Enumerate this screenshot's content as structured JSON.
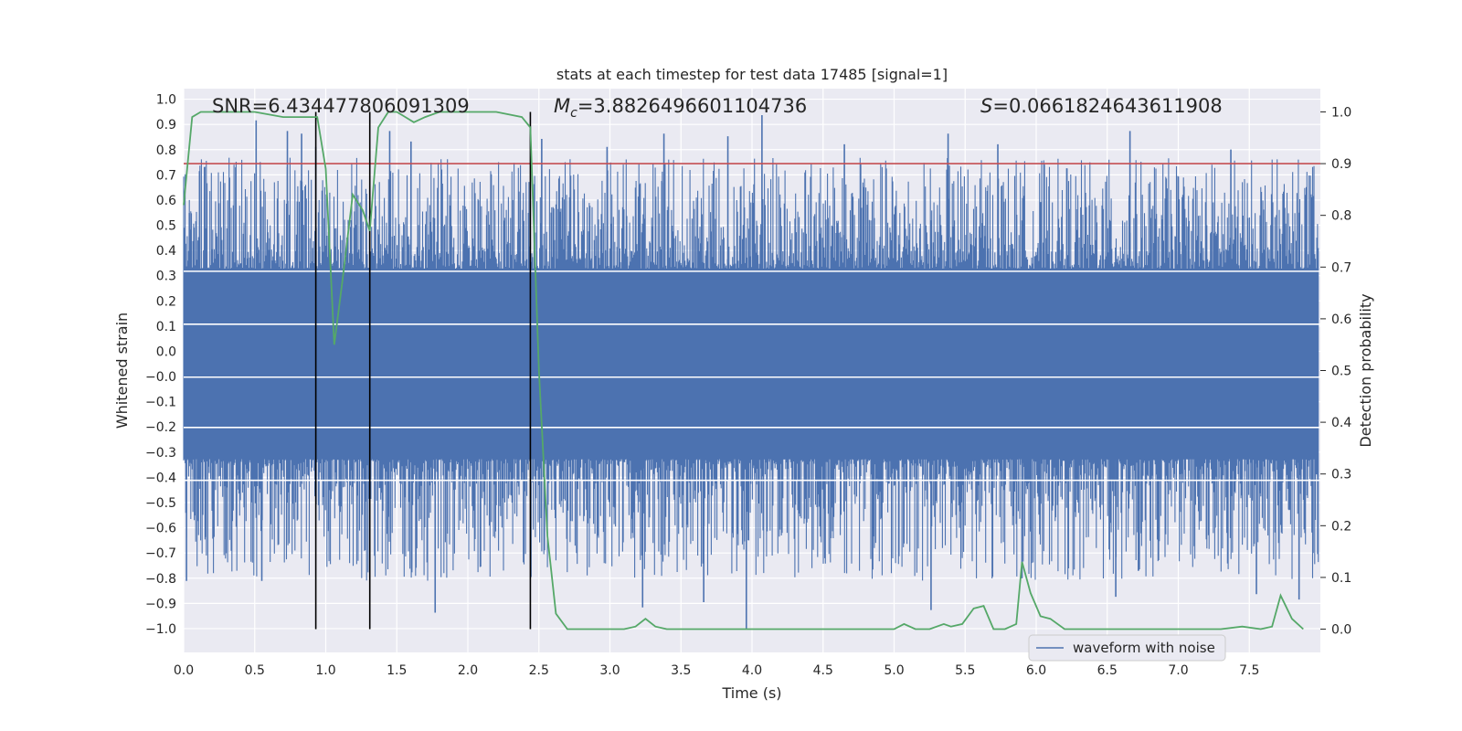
{
  "chart_data": {
    "type": "line",
    "title": "stats at each timestep for test data 17485 [signal=1]",
    "xlabel": "Time (s)",
    "ylabel": "Whitened strain",
    "y2label": "Detection probability",
    "xlim": [
      0.0,
      8.0
    ],
    "ylim": [
      -1.09,
      1.04
    ],
    "y2lim": [
      -0.045,
      1.045
    ],
    "xticks": [
      "0.0",
      "0.5",
      "1.0",
      "1.5",
      "2.0",
      "2.5",
      "3.0",
      "3.5",
      "4.0",
      "4.5",
      "5.0",
      "5.5",
      "6.0",
      "6.5",
      "7.0",
      "7.5"
    ],
    "yticks": [
      "1.0",
      "0.9",
      "0.8",
      "0.7",
      "0.6",
      "0.5",
      "0.4",
      "0.3",
      "0.2",
      "0.1",
      "0.0",
      "-0.0",
      "-0.1",
      "-0.2",
      "-0.3",
      "-0.4",
      "-0.5",
      "-0.6",
      "-0.7",
      "-0.8",
      "-0.9",
      "-1.0"
    ],
    "y2ticks": [
      "1.0",
      "0.9",
      "0.8",
      "0.7",
      "0.6",
      "0.5",
      "0.4",
      "0.3",
      "0.2",
      "0.1",
      "0.0"
    ],
    "annotations": {
      "snr": "SNR=6.434477806091309",
      "mc_symbol": "M",
      "mc_sub": "c",
      "mc_value": "=3.8826496601104736",
      "s_symbol": "S",
      "s_value": "=0.0661824643611908"
    },
    "threshold": 0.9,
    "vertical_lines_x": [
      0.93,
      1.31,
      2.44
    ],
    "legend": {
      "label": "waveform with noise",
      "placement": "lower-right"
    },
    "series": [
      {
        "name": "waveform with noise",
        "color": "#4c72b0",
        "envelope": {
          "core_abs": 0.36,
          "max": 0.94,
          "min": -1.0
        },
        "notable_peaks": [
          {
            "x": 0.04,
            "y": 0.57
          },
          {
            "x": 0.51,
            "y": 0.92
          },
          {
            "x": 0.73,
            "y": 0.88
          },
          {
            "x": 0.83,
            "y": 0.87
          },
          {
            "x": 0.93,
            "y": 0.82
          },
          {
            "x": 1.45,
            "y": 0.88
          },
          {
            "x": 1.6,
            "y": 0.84
          },
          {
            "x": 2.52,
            "y": 0.85
          },
          {
            "x": 2.98,
            "y": 0.82
          },
          {
            "x": 3.38,
            "y": 0.87
          },
          {
            "x": 3.83,
            "y": 0.86
          },
          {
            "x": 4.07,
            "y": 0.94
          },
          {
            "x": 4.65,
            "y": 0.83
          },
          {
            "x": 5.38,
            "y": 0.87
          },
          {
            "x": 5.73,
            "y": 0.83
          },
          {
            "x": 6.66,
            "y": 0.88
          },
          {
            "x": 7.37,
            "y": 0.81
          },
          {
            "x": 0.02,
            "y": -0.82
          },
          {
            "x": 0.55,
            "y": -0.82
          },
          {
            "x": 1.77,
            "y": -0.94
          },
          {
            "x": 3.23,
            "y": -0.92
          },
          {
            "x": 3.66,
            "y": -0.9
          },
          {
            "x": 3.96,
            "y": -1.0
          },
          {
            "x": 5.26,
            "y": -0.93
          },
          {
            "x": 5.9,
            "y": -0.81
          },
          {
            "x": 6.56,
            "y": -0.88
          },
          {
            "x": 7.55,
            "y": -0.87
          },
          {
            "x": 7.85,
            "y": -0.89
          }
        ]
      },
      {
        "name": "detection probability",
        "color": "#55a868",
        "axis": "y2",
        "x": [
          0.0,
          0.06,
          0.12,
          0.2,
          0.35,
          0.5,
          0.7,
          0.88,
          0.94,
          1.0,
          1.06,
          1.12,
          1.19,
          1.26,
          1.31,
          1.37,
          1.44,
          1.5,
          1.56,
          1.62,
          1.7,
          1.8,
          1.9,
          2.0,
          2.2,
          2.38,
          2.44,
          2.5,
          2.56,
          2.62,
          2.7,
          2.78,
          2.9,
          3.0,
          3.1,
          3.18,
          3.25,
          3.32,
          3.4,
          3.6,
          3.8,
          4.0,
          4.2,
          4.5,
          4.8,
          5.0,
          5.07,
          5.15,
          5.25,
          5.35,
          5.4,
          5.48,
          5.56,
          5.63,
          5.7,
          5.78,
          5.86,
          5.9,
          5.96,
          6.03,
          6.1,
          6.2,
          6.3,
          6.5,
          7.0,
          7.3,
          7.45,
          7.58,
          7.66,
          7.72,
          7.8,
          7.88
        ],
        "values": [
          0.82,
          0.99,
          1.0,
          1.0,
          1.0,
          1.0,
          0.99,
          0.99,
          0.99,
          0.89,
          0.55,
          0.68,
          0.84,
          0.81,
          0.77,
          0.97,
          1.0,
          1.0,
          0.99,
          0.98,
          0.99,
          1.0,
          1.0,
          1.0,
          1.0,
          0.99,
          0.97,
          0.5,
          0.18,
          0.03,
          0.0,
          0.0,
          0.0,
          0.0,
          0.0,
          0.005,
          0.02,
          0.005,
          0.0,
          0.0,
          0.0,
          0.0,
          0.0,
          0.0,
          0.0,
          0.0,
          0.01,
          0.0,
          0.0,
          0.01,
          0.005,
          0.01,
          0.04,
          0.045,
          0.0,
          0.0,
          0.01,
          0.13,
          0.07,
          0.025,
          0.02,
          0.0,
          0.0,
          0.0,
          0.0,
          0.0,
          0.005,
          0.0,
          0.005,
          0.065,
          0.02,
          0.0
        ]
      }
    ]
  }
}
